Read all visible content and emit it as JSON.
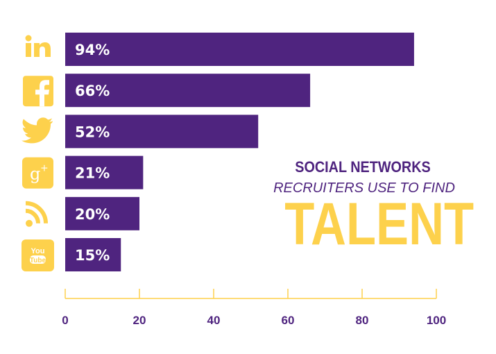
{
  "chart_data": {
    "type": "bar",
    "orientation": "horizontal",
    "title": "SOCIAL NETWORKS",
    "subtitle": "RECRUITERS USE TO FIND",
    "headline": "TALENT",
    "categories": [
      "LinkedIn",
      "Facebook",
      "Twitter",
      "Google+",
      "RSS",
      "YouTube"
    ],
    "icons": [
      "linkedin-icon",
      "facebook-icon",
      "twitter-icon",
      "google-plus-icon",
      "rss-icon",
      "youtube-icon"
    ],
    "values": [
      94,
      66,
      52,
      21,
      20,
      15
    ],
    "value_labels": [
      "94%",
      "66%",
      "52%",
      "21%",
      "20%",
      "15%"
    ],
    "xlim": [
      0,
      100
    ],
    "xticks": [
      0,
      20,
      40,
      60,
      80,
      100
    ],
    "xtick_labels": [
      "0",
      "20",
      "40",
      "60",
      "80",
      "100"
    ],
    "xlabel": "",
    "ylabel": "",
    "grid": false,
    "colors": {
      "bar": "#4f247f",
      "accent": "#fdd14c"
    }
  }
}
